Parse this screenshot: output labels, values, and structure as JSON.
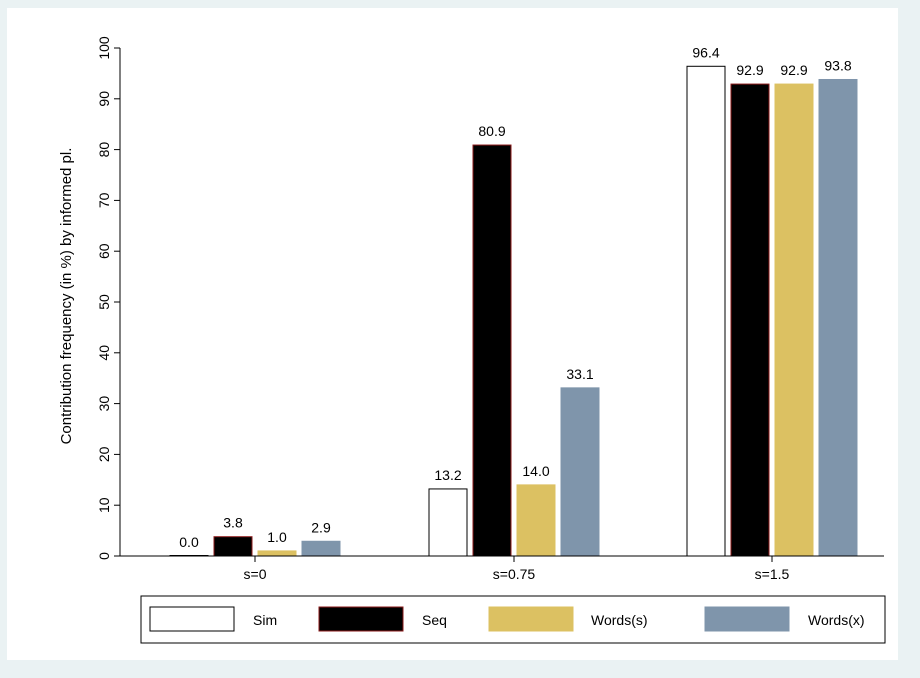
{
  "chart_data": {
    "type": "bar",
    "categories": [
      "s=0",
      "s=0.75",
      "s=1.5"
    ],
    "series": [
      {
        "name": "Sim",
        "values": [
          0.0,
          13.2,
          96.4
        ],
        "color": "#ffffff",
        "stroke": "#000000"
      },
      {
        "name": "Seq",
        "values": [
          3.8,
          80.9,
          92.9
        ],
        "color": "#000000",
        "stroke": "#8b1a1a"
      },
      {
        "name": "Words(s)",
        "values": [
          1.0,
          14.0,
          92.9
        ],
        "color": "#dcc162",
        "stroke": "#dcc162"
      },
      {
        "name": "Words(x)",
        "values": [
          2.9,
          33.1,
          93.8
        ],
        "color": "#7f95ab",
        "stroke": "#7f95ab"
      }
    ],
    "data_labels": [
      [
        "0.0",
        "13.2",
        "96.4"
      ],
      [
        "3.8",
        "80.9",
        "92.9"
      ],
      [
        "1.0",
        "14.0",
        "92.9"
      ],
      [
        "2.9",
        "33.1",
        "93.8"
      ]
    ],
    "title": "",
    "xlabel": "",
    "ylabel": "Contribution frequency (in %) by informed pl.",
    "ylim": [
      0,
      100
    ],
    "yticks": [
      0,
      10,
      20,
      30,
      40,
      50,
      60,
      70,
      80,
      90,
      100
    ],
    "ytick_labels": [
      "0",
      "10",
      "20",
      "30",
      "40",
      "50",
      "60",
      "70",
      "80",
      "90",
      "100"
    ],
    "grid": false,
    "legend_position": "bottom"
  },
  "colors": {
    "outer_background": "#eaf2f3",
    "plot_background": "#ffffff"
  }
}
